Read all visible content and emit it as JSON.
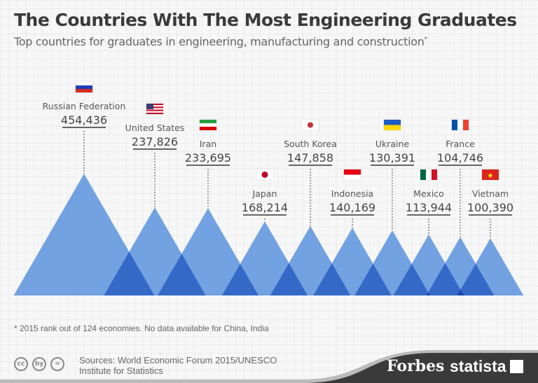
{
  "header": {
    "title": "The Countries With The Most Engineering Graduates",
    "subtitle": "Top countries for graduates in engineering, manufacturing and construction",
    "subtitle_mark": "*"
  },
  "chart_data": {
    "type": "bar",
    "style": "overlapping triangles, area proportional to value",
    "title": "The Countries With The Most Engineering Graduates",
    "categories": [
      "Russian Federation",
      "United States",
      "Iran",
      "Japan",
      "South Korea",
      "Indonesia",
      "Ukraine",
      "Mexico",
      "France",
      "Vietnam"
    ],
    "values": [
      454436,
      237826,
      233695,
      168214,
      147858,
      140169,
      130391,
      113944,
      104746,
      100390
    ],
    "labels": [
      "454,436",
      "237,826",
      "233,695",
      "168,214",
      "147,858",
      "140,169",
      "130,391",
      "113,944",
      "104,746",
      "100,390"
    ],
    "flags": [
      "russia",
      "usa",
      "iran",
      "japan",
      "south-korea",
      "indonesia",
      "ukraine",
      "mexico",
      "france",
      "vietnam"
    ],
    "color": "#5b93dd",
    "overlap_color": "#2f62c0"
  },
  "footer": {
    "note": "* 2015 rank out of 124 economies. No data available for China, India",
    "sources_line1": "Sources: World Economic Forum 2015/UNESCO",
    "sources_line2": "Institute for Statistics",
    "cc_icons": [
      "cc",
      "by",
      "="
    ],
    "forbes": "Forbes",
    "statista": "statista"
  }
}
